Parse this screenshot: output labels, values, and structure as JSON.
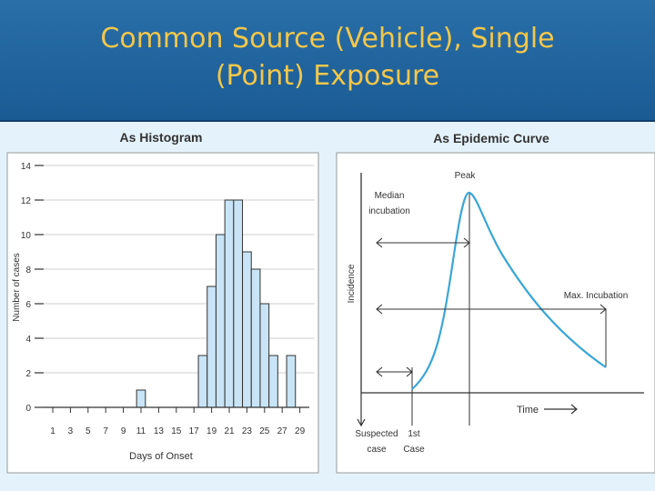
{
  "slide": {
    "title_line1": "Common Source (Vehicle), Single",
    "title_line2": "(Point) Exposure"
  },
  "colors": {
    "header": "#1d5f98",
    "title": "#f3c74a",
    "bar_fill": "#c9e4f6",
    "curve": "#3aa6d6"
  },
  "chart_data": [
    {
      "type": "bar",
      "title": "As Histogram",
      "xlabel": "Days of Onset",
      "ylabel": "Number of cases",
      "ylim": [
        0,
        14
      ],
      "y_ticks": [
        0,
        2,
        4,
        6,
        8,
        10,
        12,
        14
      ],
      "x_tick_labels": [
        "1",
        "3",
        "5",
        "7",
        "9",
        "11",
        "13",
        "15",
        "17",
        "19",
        "21",
        "23",
        "25",
        "27",
        "29"
      ],
      "x": [
        1,
        2,
        3,
        4,
        5,
        6,
        7,
        8,
        9,
        10,
        11,
        12,
        13,
        14,
        15,
        16,
        17,
        18,
        19,
        20,
        21,
        22,
        23,
        24,
        25,
        26,
        27,
        28,
        29
      ],
      "values": [
        0,
        0,
        0,
        0,
        0,
        0,
        0,
        0,
        0,
        0,
        1,
        0,
        0,
        0,
        0,
        0,
        0,
        3,
        7,
        10,
        12,
        12,
        9,
        8,
        6,
        3,
        0,
        3,
        0
      ],
      "grid": true
    },
    {
      "type": "line",
      "title": "As Epidemic Curve",
      "xlabel": "Time",
      "ylabel": "Incidence",
      "annotations": [
        "Peak",
        "Median incubation",
        "Max. Incubation",
        "Suspected case",
        "1st case"
      ],
      "grid": false
    }
  ],
  "histogram": {
    "title": "As Histogram",
    "ylabel": "Number of cases",
    "xlabel": "Days of Onset"
  },
  "epi": {
    "title": "As Epidemic Curve",
    "ylabel": "Incidence",
    "xlabel": "Time",
    "peak": "Peak",
    "median_line1": "Median",
    "median_line2": "incubation",
    "max_incubation": "Max. Incubation",
    "suspected_line1": "Suspected",
    "suspected_line2": "case",
    "first_line1": "1st",
    "first_line2": "Case"
  }
}
